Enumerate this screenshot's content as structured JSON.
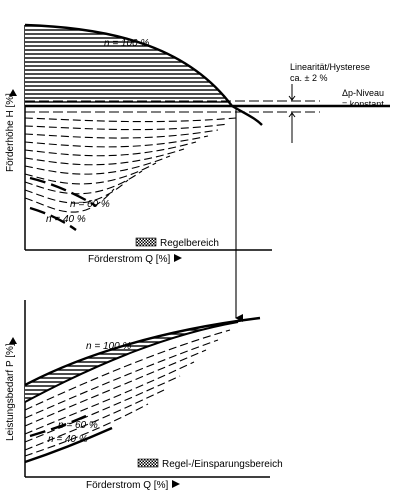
{
  "top": {
    "ylabel": "Förderhöhe H [%]",
    "xlabel": "Förderstrom Q [%]",
    "n_100": "n = 100 %",
    "n_60": "n = 60 %",
    "n_40": "n = 40 %",
    "legend": "Regelbereich",
    "annot_linearity_1": "Linearität/Hysterese",
    "annot_linearity_2": "ca. ± 2 %",
    "annot_dp_1": "Δp-Niveau",
    "annot_dp_2": "= konstant"
  },
  "bottom": {
    "ylabel": "Leistungsbedarf P [%]",
    "xlabel": "Förderstrom Q [%]",
    "n_100": "n = 100 %",
    "n_60": "n = 60 %",
    "n_40": "n = 40 %",
    "legend": "Regel-/Einsparungsbereich"
  },
  "colors": {
    "ink": "#000000",
    "paper": "#ffffff"
  }
}
